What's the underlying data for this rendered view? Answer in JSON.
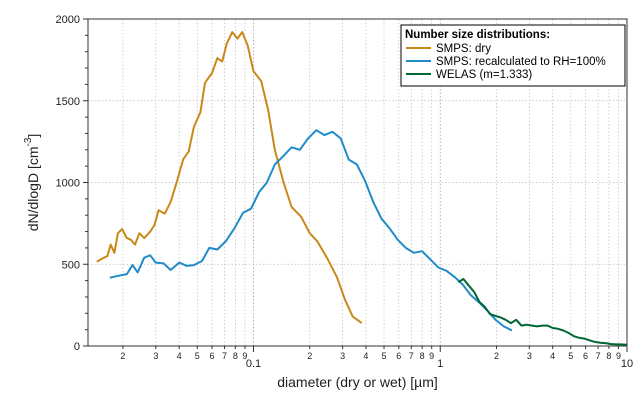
{
  "chart_data": {
    "type": "line",
    "x_scale": "log",
    "xlim": [
      0.013,
      10
    ],
    "ylim": [
      0,
      2000
    ],
    "grid": true,
    "xlabel": "diameter (dry or wet) [µm]",
    "ylabel_main": "dN/dlogD [cm",
    "ylabel_sup": "-3",
    "ylabel_close": "]",
    "y_ticks": [
      0,
      500,
      1000,
      1500,
      2000
    ],
    "x_major_ticks": [
      {
        "value": 0.1,
        "label": "0.1"
      },
      {
        "value": 1,
        "label": "1"
      },
      {
        "value": 10,
        "label": "10"
      }
    ],
    "x_minor_labels": [
      "2",
      "3",
      "4",
      "5",
      "6",
      "7",
      "8",
      "9"
    ],
    "legend": {
      "title": "Number size distributions:",
      "position": "top-right"
    },
    "series": [
      {
        "name": "SMPS: dry",
        "color": "#c8891a",
        "points": [
          [
            0.0145,
            515
          ],
          [
            0.0155,
            535
          ],
          [
            0.0165,
            550
          ],
          [
            0.0172,
            620
          ],
          [
            0.018,
            570
          ],
          [
            0.0188,
            690
          ],
          [
            0.0198,
            715
          ],
          [
            0.021,
            660
          ],
          [
            0.022,
            650
          ],
          [
            0.0232,
            620
          ],
          [
            0.0245,
            690
          ],
          [
            0.026,
            660
          ],
          [
            0.028,
            700
          ],
          [
            0.0295,
            740
          ],
          [
            0.031,
            830
          ],
          [
            0.0335,
            810
          ],
          [
            0.036,
            880
          ],
          [
            0.039,
            1010
          ],
          [
            0.042,
            1140
          ],
          [
            0.045,
            1190
          ],
          [
            0.048,
            1340
          ],
          [
            0.052,
            1430
          ],
          [
            0.055,
            1610
          ],
          [
            0.06,
            1670
          ],
          [
            0.064,
            1760
          ],
          [
            0.068,
            1740
          ],
          [
            0.072,
            1850
          ],
          [
            0.077,
            1920
          ],
          [
            0.082,
            1880
          ],
          [
            0.087,
            1920
          ],
          [
            0.093,
            1840
          ],
          [
            0.1,
            1680
          ],
          [
            0.11,
            1620
          ],
          [
            0.12,
            1440
          ],
          [
            0.13,
            1200
          ],
          [
            0.145,
            1000
          ],
          [
            0.16,
            850
          ],
          [
            0.18,
            790
          ],
          [
            0.2,
            690
          ],
          [
            0.22,
            640
          ],
          [
            0.25,
            530
          ],
          [
            0.28,
            420
          ],
          [
            0.31,
            280
          ],
          [
            0.34,
            180
          ],
          [
            0.38,
            140
          ]
        ]
      },
      {
        "name": "SMPS: recalculated to RH=100%",
        "color": "#1f8cc8",
        "points": [
          [
            0.017,
            418
          ],
          [
            0.019,
            430
          ],
          [
            0.021,
            440
          ],
          [
            0.0225,
            495
          ],
          [
            0.024,
            450
          ],
          [
            0.026,
            540
          ],
          [
            0.028,
            555
          ],
          [
            0.03,
            510
          ],
          [
            0.033,
            505
          ],
          [
            0.036,
            465
          ],
          [
            0.04,
            510
          ],
          [
            0.044,
            490
          ],
          [
            0.048,
            495
          ],
          [
            0.053,
            520
          ],
          [
            0.058,
            600
          ],
          [
            0.064,
            590
          ],
          [
            0.071,
            640
          ],
          [
            0.079,
            720
          ],
          [
            0.088,
            815
          ],
          [
            0.097,
            840
          ],
          [
            0.107,
            940
          ],
          [
            0.118,
            1000
          ],
          [
            0.13,
            1110
          ],
          [
            0.144,
            1160
          ],
          [
            0.16,
            1215
          ],
          [
            0.177,
            1200
          ],
          [
            0.196,
            1270
          ],
          [
            0.217,
            1320
          ],
          [
            0.24,
            1290
          ],
          [
            0.265,
            1310
          ],
          [
            0.293,
            1270
          ],
          [
            0.324,
            1140
          ],
          [
            0.358,
            1110
          ],
          [
            0.396,
            1010
          ],
          [
            0.438,
            880
          ],
          [
            0.484,
            780
          ],
          [
            0.535,
            720
          ],
          [
            0.592,
            650
          ],
          [
            0.654,
            600
          ],
          [
            0.723,
            570
          ],
          [
            0.8,
            580
          ],
          [
            0.884,
            530
          ],
          [
            0.977,
            480
          ],
          [
            1.08,
            460
          ],
          [
            1.2,
            420
          ],
          [
            1.32,
            375
          ],
          [
            1.46,
            310
          ],
          [
            1.62,
            265
          ],
          [
            1.79,
            215
          ],
          [
            1.98,
            160
          ],
          [
            2.19,
            120
          ],
          [
            2.42,
            95
          ]
        ]
      },
      {
        "name": "WELAS (m=1.333)",
        "color": "#006633",
        "points": [
          [
            1.25,
            390
          ],
          [
            1.33,
            410
          ],
          [
            1.42,
            370
          ],
          [
            1.52,
            330
          ],
          [
            1.62,
            270
          ],
          [
            1.73,
            240
          ],
          [
            1.85,
            195
          ],
          [
            1.97,
            185
          ],
          [
            2.1,
            175
          ],
          [
            2.24,
            160
          ],
          [
            2.39,
            140
          ],
          [
            2.55,
            160
          ],
          [
            2.72,
            125
          ],
          [
            2.9,
            130
          ],
          [
            3.1,
            125
          ],
          [
            3.3,
            120
          ],
          [
            3.52,
            125
          ],
          [
            3.76,
            125
          ],
          [
            4.0,
            110
          ],
          [
            4.27,
            105
          ],
          [
            4.56,
            95
          ],
          [
            4.86,
            80
          ],
          [
            5.19,
            60
          ],
          [
            5.54,
            50
          ],
          [
            5.91,
            45
          ],
          [
            6.3,
            35
          ],
          [
            6.73,
            25
          ],
          [
            7.18,
            20
          ],
          [
            7.66,
            18
          ],
          [
            8.17,
            12
          ],
          [
            8.72,
            10
          ],
          [
            9.3,
            10
          ],
          [
            10,
            8
          ]
        ]
      }
    ]
  }
}
